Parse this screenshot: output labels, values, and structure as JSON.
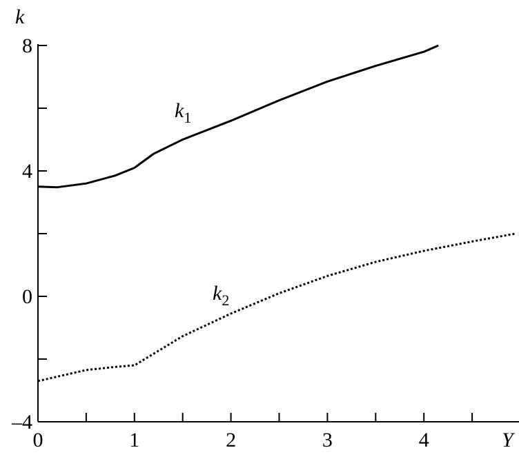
{
  "chart_data": {
    "type": "line",
    "y_label": "k",
    "x_label": "Y",
    "xlim": [
      0,
      5
    ],
    "ylim": [
      -4,
      8
    ],
    "xticks": [
      0,
      1,
      2,
      3,
      4
    ],
    "x_minor_ticks": [
      0.5,
      1.5,
      2.5,
      3.5,
      4.5
    ],
    "yticks": [
      {
        "value": -4,
        "label": "–4"
      },
      0,
      4,
      8
    ],
    "y_minor_ticks": [
      -2,
      2,
      6
    ],
    "series": [
      {
        "name": "k",
        "subscript": "1",
        "color": "#000000",
        "style": "solid",
        "x": [
          0,
          0.2,
          0.5,
          0.8,
          1.0,
          1.2,
          1.5,
          2.0,
          2.5,
          3.0,
          3.5,
          4.0,
          4.15
        ],
        "values": [
          3.5,
          3.48,
          3.6,
          3.85,
          4.1,
          4.55,
          5.0,
          5.6,
          6.25,
          6.85,
          7.35,
          7.8,
          8.0
        ]
      },
      {
        "name": "k",
        "subscript": "2",
        "color": "#000000",
        "style": "dotted",
        "x": [
          0,
          0.5,
          0.8,
          1.0,
          1.5,
          2.0,
          2.5,
          3.0,
          3.5,
          4.0,
          4.5,
          4.95
        ],
        "values": [
          -2.7,
          -2.35,
          -2.25,
          -2.2,
          -1.27,
          -0.55,
          0.1,
          0.65,
          1.1,
          1.45,
          1.75,
          2.0
        ]
      }
    ]
  }
}
